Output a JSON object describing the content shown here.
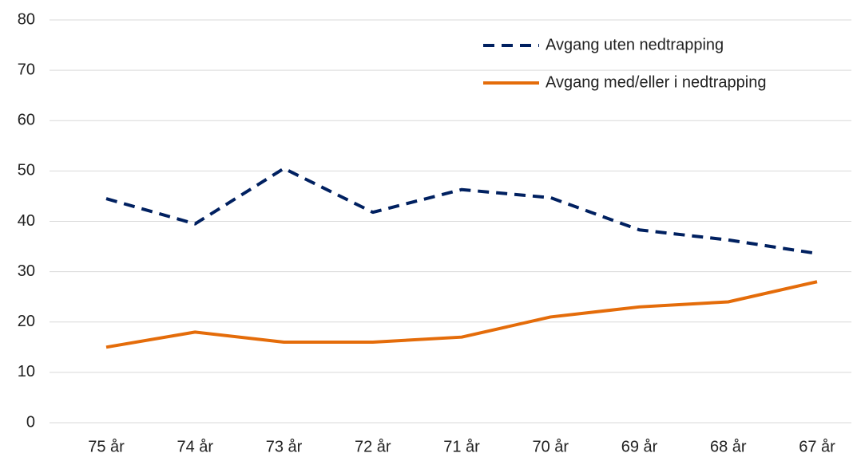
{
  "chart_data": {
    "type": "line",
    "categories": [
      "75 år",
      "74 år",
      "73 år",
      "72 år",
      "71 år",
      "70 år",
      "69 år",
      "68 år",
      "67 år"
    ],
    "series": [
      {
        "name": "Avgang uten nedtrapping",
        "color": "#002060",
        "dashed": true,
        "values": [
          44.5,
          39.5,
          50.5,
          41.8,
          46.3,
          44.7,
          38.3,
          36.3,
          33.6
        ]
      },
      {
        "name": "Avgang med/eller i nedtrapping",
        "color": "#e46c0a",
        "dashed": false,
        "values": [
          15,
          18,
          16,
          16,
          17,
          21,
          23,
          24,
          28
        ]
      }
    ],
    "ylim": [
      0,
      80
    ],
    "yticks": [
      0,
      10,
      20,
      30,
      40,
      50,
      60,
      70,
      80
    ],
    "grid": true,
    "legend": "top-right"
  }
}
